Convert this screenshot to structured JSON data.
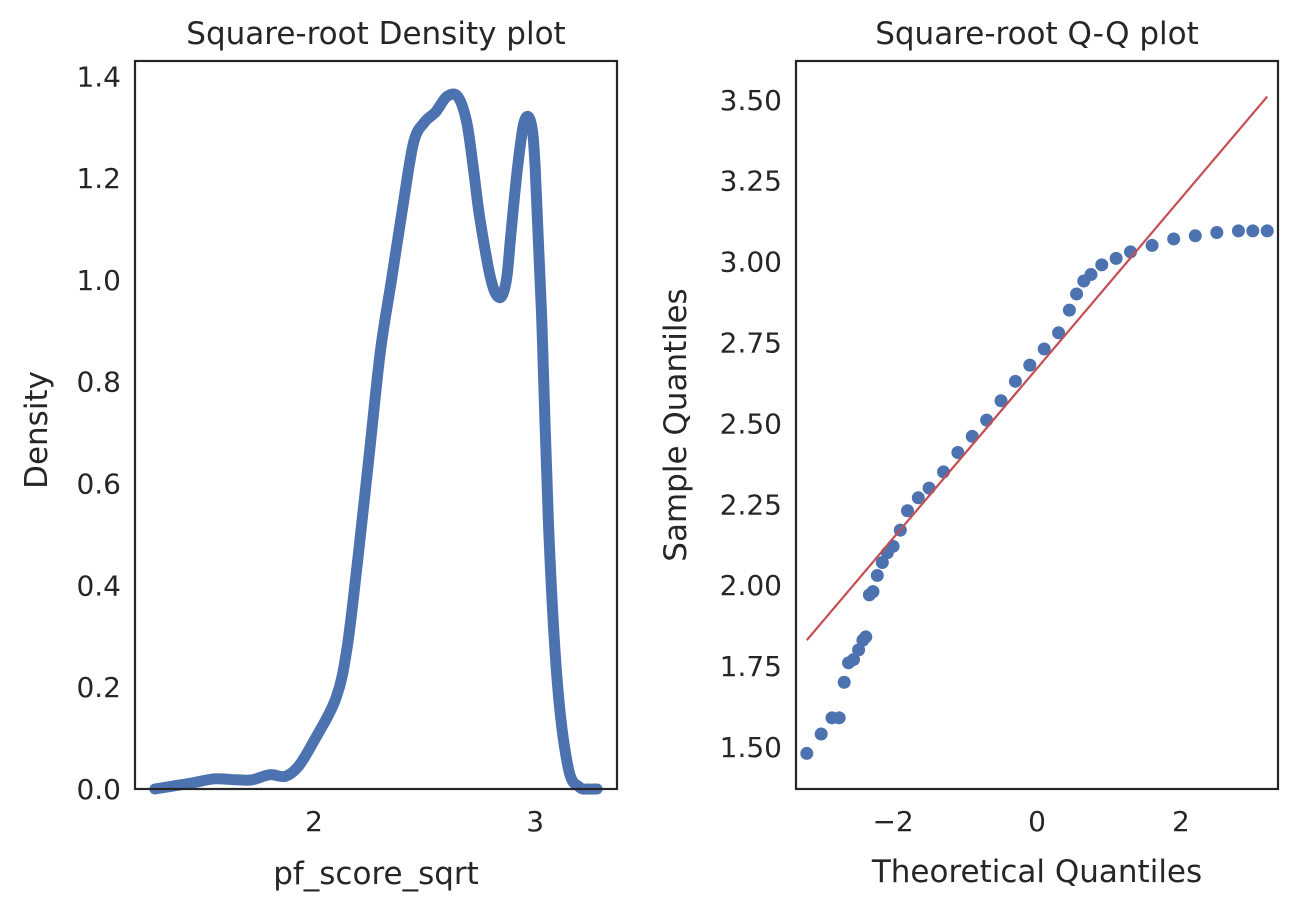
{
  "chart_data": [
    {
      "type": "line",
      "title": "Square-root Density plot",
      "xlabel": "pf_score_sqrt",
      "ylabel": "Density",
      "xlim": [
        1.19,
        3.37
      ],
      "ylim": [
        0.0,
        1.43
      ],
      "xticks": [
        {
          "value": 2,
          "label": "2"
        },
        {
          "value": 3,
          "label": "3"
        }
      ],
      "yticks": [
        {
          "value": 0.0,
          "label": "0.0"
        },
        {
          "value": 0.2,
          "label": "0.2"
        },
        {
          "value": 0.4,
          "label": "0.4"
        },
        {
          "value": 0.6,
          "label": "0.6"
        },
        {
          "value": 0.8,
          "label": "0.8"
        },
        {
          "value": 1.0,
          "label": "1.0"
        },
        {
          "value": 1.2,
          "label": "1.2"
        },
        {
          "value": 1.4,
          "label": "1.4"
        }
      ],
      "grid": false,
      "series": [
        {
          "color": "#4c72b0",
          "x": [
            1.28,
            1.35,
            1.45,
            1.55,
            1.65,
            1.72,
            1.8,
            1.87,
            1.93,
            2.0,
            2.1,
            2.15,
            2.2,
            2.25,
            2.3,
            2.35,
            2.4,
            2.45,
            2.5,
            2.55,
            2.6,
            2.65,
            2.69,
            2.72,
            2.75,
            2.8,
            2.84,
            2.87,
            2.89,
            2.92,
            2.95,
            2.98,
            3.0,
            3.03,
            3.06,
            3.1,
            3.15,
            3.2,
            3.24,
            3.28
          ],
          "y": [
            0.0,
            0.005,
            0.012,
            0.02,
            0.018,
            0.018,
            0.028,
            0.025,
            0.045,
            0.095,
            0.18,
            0.28,
            0.46,
            0.66,
            0.86,
            1.0,
            1.14,
            1.27,
            1.31,
            1.33,
            1.36,
            1.36,
            1.31,
            1.22,
            1.12,
            1.0,
            0.965,
            1.0,
            1.09,
            1.22,
            1.31,
            1.31,
            1.22,
            0.92,
            0.52,
            0.21,
            0.04,
            0.004,
            0.0,
            0.0
          ]
        }
      ]
    },
    {
      "type": "scatter",
      "title": "Square-root Q-Q plot",
      "xlabel": "Theoretical Quantiles",
      "ylabel": "Sample Quantiles",
      "xlim": [
        -3.35,
        3.35
      ],
      "ylim": [
        1.37,
        3.62
      ],
      "xticks": [
        {
          "value": -2,
          "label": "−2"
        },
        {
          "value": 0,
          "label": "0"
        },
        {
          "value": 2,
          "label": "2"
        }
      ],
      "yticks": [
        {
          "value": 1.5,
          "label": "1.50"
        },
        {
          "value": 1.75,
          "label": "1.75"
        },
        {
          "value": 2.0,
          "label": "2.00"
        },
        {
          "value": 2.25,
          "label": "2.25"
        },
        {
          "value": 2.5,
          "label": "2.50"
        },
        {
          "value": 2.75,
          "label": "2.75"
        },
        {
          "value": 3.0,
          "label": "3.00"
        },
        {
          "value": 3.25,
          "label": "3.25"
        },
        {
          "value": 3.5,
          "label": "3.50"
        }
      ],
      "grid": false,
      "points_color": "#4c72b0",
      "points_x": [
        -3.2,
        -3.0,
        -2.85,
        -2.75,
        -2.68,
        -2.62,
        -2.55,
        -2.48,
        -2.42,
        -2.38,
        -2.33,
        -2.28,
        -2.22,
        -2.15,
        -2.08,
        -2.0,
        -1.9,
        -1.8,
        -1.65,
        -1.5,
        -1.3,
        -1.1,
        -0.9,
        -0.7,
        -0.5,
        -0.3,
        -0.1,
        0.1,
        0.3,
        0.45,
        0.55,
        0.65,
        0.75,
        0.9,
        1.1,
        1.3,
        1.6,
        1.9,
        2.2,
        2.5,
        2.8,
        3.0,
        3.2
      ],
      "points_y": [
        1.48,
        1.54,
        1.59,
        1.59,
        1.7,
        1.76,
        1.77,
        1.8,
        1.83,
        1.84,
        1.97,
        1.98,
        2.03,
        2.07,
        2.1,
        2.12,
        2.17,
        2.23,
        2.27,
        2.3,
        2.35,
        2.41,
        2.46,
        2.51,
        2.57,
        2.63,
        2.68,
        2.73,
        2.78,
        2.85,
        2.9,
        2.94,
        2.96,
        2.99,
        3.01,
        3.03,
        3.05,
        3.07,
        3.08,
        3.09,
        3.095,
        3.095,
        3.095
      ],
      "reference_line": {
        "color": "#c44e52",
        "x": [
          -3.2,
          3.2
        ],
        "y": [
          1.83,
          3.51
        ]
      }
    }
  ]
}
